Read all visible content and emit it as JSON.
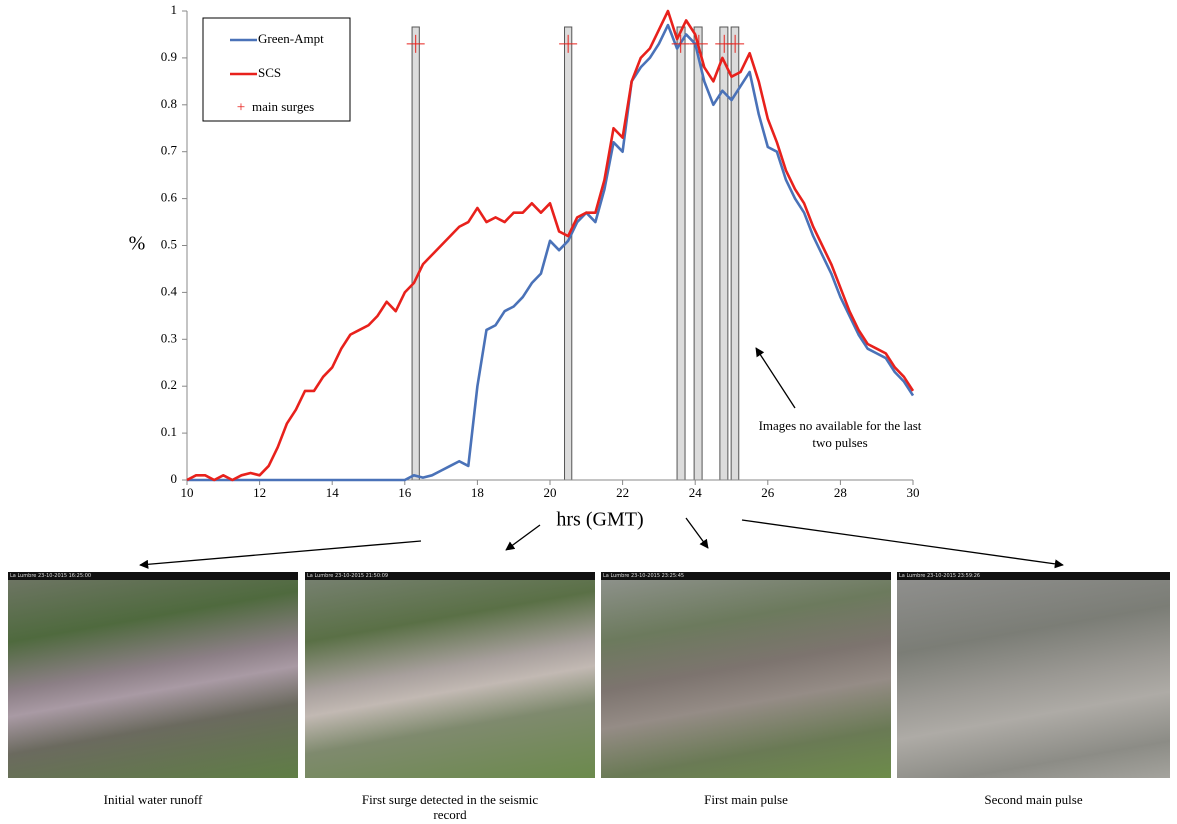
{
  "chart_data": {
    "type": "line",
    "xlabel": "hrs (GMT)",
    "ylabel": "%",
    "x": [
      10,
      10.25,
      10.5,
      10.75,
      11,
      11.25,
      11.5,
      11.75,
      12,
      12.25,
      12.5,
      12.75,
      13,
      13.25,
      13.5,
      13.75,
      14,
      14.25,
      14.5,
      14.75,
      15,
      15.25,
      15.5,
      15.75,
      16,
      16.25,
      16.5,
      16.75,
      17,
      17.25,
      17.5,
      17.75,
      18,
      18.25,
      18.5,
      18.75,
      19,
      19.25,
      19.5,
      19.75,
      20,
      20.25,
      20.5,
      20.75,
      21,
      21.25,
      21.5,
      21.75,
      22,
      22.25,
      22.5,
      22.75,
      23,
      23.25,
      23.5,
      23.75,
      24,
      24.25,
      24.5,
      24.75,
      25,
      25.25,
      25.5,
      25.75,
      26,
      26.25,
      26.5,
      26.75,
      27,
      27.25,
      27.5,
      27.75,
      28,
      28.25,
      28.5,
      28.75,
      29,
      29.25,
      29.5,
      29.75,
      30
    ],
    "series": [
      {
        "name": "Green-Ampt",
        "color": "#4a72b8",
        "values": [
          0,
          0,
          0,
          0,
          0,
          0,
          0,
          0,
          0,
          0,
          0,
          0,
          0,
          0,
          0,
          0,
          0,
          0,
          0,
          0,
          0,
          0,
          0,
          0,
          0,
          0.01,
          0.005,
          0.01,
          0.02,
          0.03,
          0.04,
          0.03,
          0.2,
          0.32,
          0.33,
          0.36,
          0.37,
          0.39,
          0.42,
          0.44,
          0.51,
          0.49,
          0.51,
          0.55,
          0.57,
          0.55,
          0.62,
          0.72,
          0.7,
          0.85,
          0.88,
          0.9,
          0.93,
          0.97,
          0.92,
          0.95,
          0.93,
          0.85,
          0.8,
          0.83,
          0.81,
          0.84,
          0.87,
          0.78,
          0.71,
          0.7,
          0.64,
          0.6,
          0.57,
          0.52,
          0.48,
          0.44,
          0.39,
          0.35,
          0.31,
          0.28,
          0.27,
          0.26,
          0.23,
          0.21,
          0.18
        ]
      },
      {
        "name": "SCS",
        "color": "#e8211c",
        "values": [
          0,
          0.01,
          0.01,
          0,
          0.01,
          0,
          0.01,
          0.015,
          0.01,
          0.03,
          0.07,
          0.12,
          0.15,
          0.19,
          0.19,
          0.22,
          0.24,
          0.28,
          0.31,
          0.32,
          0.33,
          0.35,
          0.38,
          0.36,
          0.4,
          0.42,
          0.46,
          0.48,
          0.5,
          0.52,
          0.54,
          0.55,
          0.58,
          0.55,
          0.56,
          0.55,
          0.57,
          0.57,
          0.59,
          0.57,
          0.59,
          0.53,
          0.52,
          0.56,
          0.57,
          0.57,
          0.64,
          0.75,
          0.73,
          0.85,
          0.9,
          0.92,
          0.96,
          1,
          0.94,
          0.98,
          0.95,
          0.88,
          0.85,
          0.9,
          0.86,
          0.87,
          0.91,
          0.85,
          0.77,
          0.72,
          0.66,
          0.62,
          0.59,
          0.54,
          0.5,
          0.46,
          0.41,
          0.36,
          0.32,
          0.29,
          0.28,
          0.27,
          0.24,
          0.22,
          0.19
        ]
      }
    ],
    "surges": {
      "name": "main surges",
      "color": "#e8211c",
      "x": [
        16.3,
        20.5,
        23.6,
        24.1,
        24.8,
        25.1
      ],
      "values": [
        0.93,
        0.93,
        0.93,
        0.93,
        0.93,
        0.93
      ]
    },
    "surge_windows": [
      [
        16.2,
        16.4
      ],
      [
        20.4,
        20.6
      ],
      [
        23.5,
        23.72
      ],
      [
        23.97,
        24.19
      ],
      [
        24.68,
        24.9
      ],
      [
        24.99,
        25.2
      ]
    ],
    "xlim": [
      10,
      30
    ],
    "xticks": [
      10,
      12,
      14,
      16,
      18,
      20,
      22,
      24,
      26,
      28,
      30
    ],
    "ylim": [
      0,
      1
    ],
    "yticks": [
      0,
      0.1,
      0.2,
      0.3,
      0.4,
      0.5,
      0.6,
      0.7,
      0.8,
      0.9,
      1
    ],
    "annotation": "Images no available for the last two pulses"
  },
  "photos": [
    {
      "timestamp": "La Lumbre 23-10-2015 16:25:00",
      "caption": "Initial water runoff"
    },
    {
      "timestamp": "La Lumbre 23-10-2015 21:50:09",
      "caption": "First surge detected in the seismic record"
    },
    {
      "timestamp": "La Lumbre 23-10-2015 23:25:45",
      "caption": "First main pulse"
    },
    {
      "timestamp": "La Lumbre 23-10-2015 23:59:26",
      "caption": "Second main pulse"
    }
  ]
}
